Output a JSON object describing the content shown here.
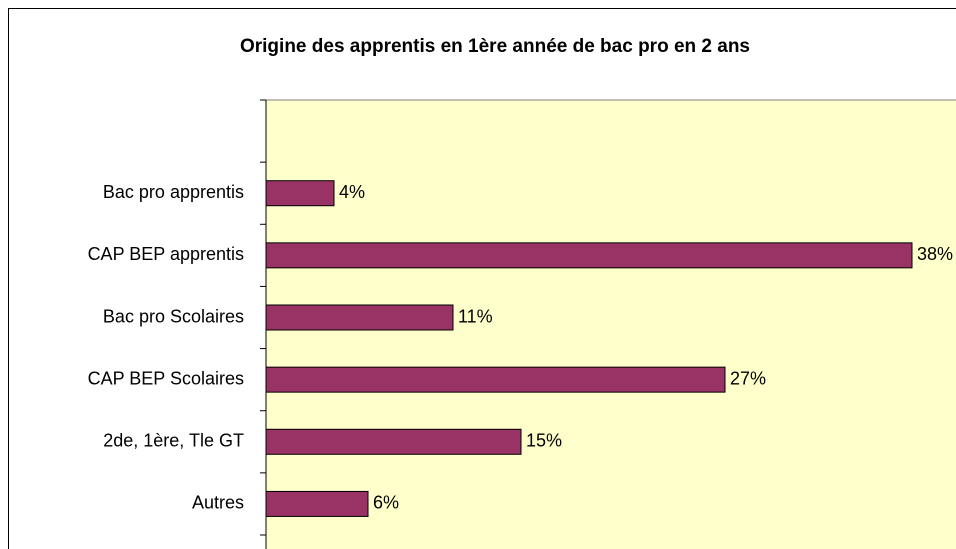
{
  "chart_data": {
    "type": "bar",
    "orientation": "horizontal",
    "title": "Origine des apprentis en 1ère année de bac pro en 2 ans",
    "categories": [
      null,
      "Bac pro apprentis",
      "CAP BEP apprentis",
      "Bac pro Scolaires",
      "CAP BEP Scolaires",
      "2de, 1ère, Tle GT",
      "Autres"
    ],
    "values": [
      null,
      4,
      38,
      11,
      27,
      15,
      6
    ],
    "value_labels": [
      null,
      "4%",
      "38%",
      "11%",
      "27%",
      "15%",
      "6%"
    ],
    "color": "#993366",
    "xlim": [
      0,
      40
    ]
  }
}
